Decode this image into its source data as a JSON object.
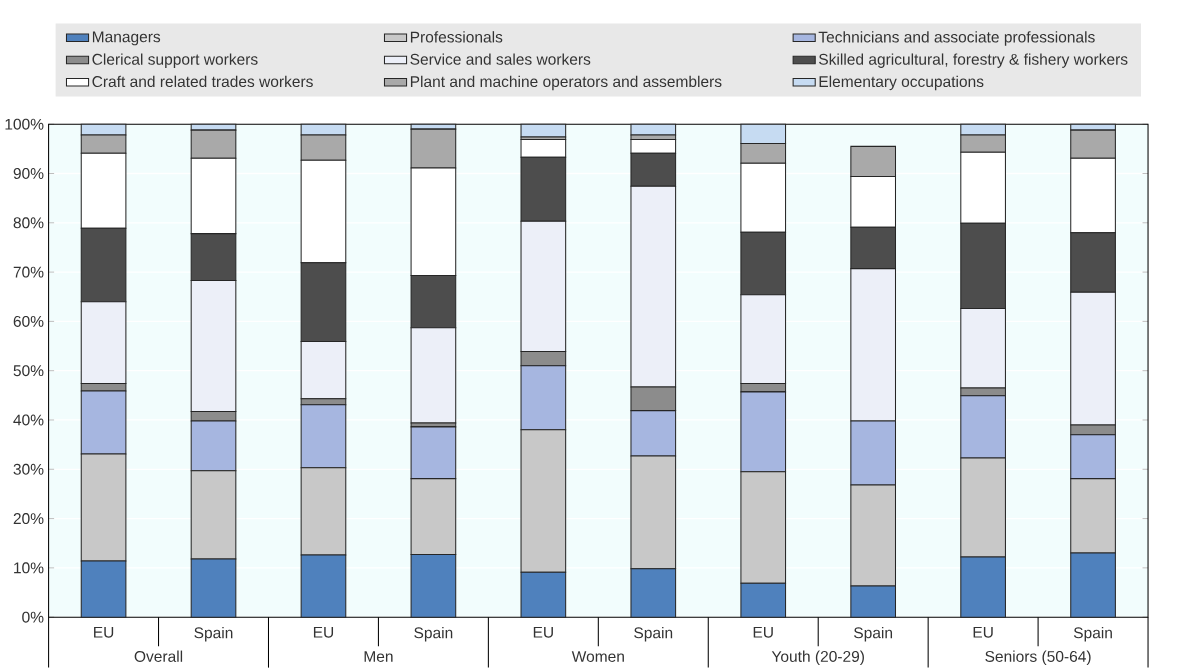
{
  "chart_data": {
    "type": "bar",
    "stacked": true,
    "categories": [
      "EU",
      "Spain",
      "EU",
      "Spain",
      "EU",
      "Spain",
      "EU",
      "Spain",
      "EU",
      "Spain"
    ],
    "annotations": [
      "Overall",
      "Men",
      "Women",
      "Youth (20-29)",
      "Seniors (50-64)"
    ],
    "series": [
      {
        "name": "Managers",
        "color": "#4f81bd",
        "values": [
          11.4,
          11.8,
          12.6,
          12.7,
          9.1,
          9.8,
          6.9,
          6.3,
          12.2,
          13.0
        ]
      },
      {
        "name": "Professionals",
        "color": "#c8c8c8",
        "values": [
          21.7,
          17.9,
          17.7,
          15.4,
          28.9,
          22.9,
          22.6,
          20.5,
          20.1,
          15.1
        ]
      },
      {
        "name": "Technicians and associate professionals",
        "color": "#a6b6e0",
        "values": [
          12.8,
          10.1,
          12.8,
          10.5,
          13.0,
          9.2,
          16.2,
          13.0,
          12.6,
          8.9
        ]
      },
      {
        "name": "Clerical support workers",
        "color": "#8c8c8c",
        "values": [
          1.5,
          1.9,
          1.2,
          0.8,
          2.9,
          4.8,
          1.7,
          null,
          1.6,
          2.0
        ]
      },
      {
        "name": "Service and sales workers",
        "color": "#eceff8",
        "values": [
          16.6,
          26.6,
          11.6,
          19.3,
          26.4,
          40.7,
          18.0,
          30.9,
          16.1,
          26.9
        ]
      },
      {
        "name": "Skilled agricultural, forestry & fishery workers",
        "color": "#4d4d4d",
        "values": [
          14.9,
          9.5,
          16.0,
          10.6,
          13.0,
          6.7,
          12.7,
          8.4,
          17.3,
          12.1
        ]
      },
      {
        "name": "Craft and related trades workers",
        "color": "#ffffff",
        "values": [
          15.2,
          15.3,
          20.8,
          21.8,
          3.6,
          2.8,
          14.0,
          10.3,
          14.4,
          15.1
        ]
      },
      {
        "name": "Plant and machine operators and assemblers",
        "color": "#a9a9a9",
        "values": [
          3.7,
          5.7,
          5.1,
          7.9,
          0.5,
          0.9,
          4.0,
          6.1,
          3.5,
          5.7
        ]
      },
      {
        "name": "Elementary occupations",
        "color": "#c6dbf2",
        "values": [
          2.2,
          1.2,
          2.2,
          1.0,
          2.6,
          2.2,
          3.9,
          null,
          2.2,
          1.2
        ]
      }
    ],
    "ylim": [
      0,
      100
    ],
    "yticks": [
      {
        "value": 0,
        "label": "0%"
      },
      {
        "value": 10,
        "label": "10%"
      },
      {
        "value": 20,
        "label": "20%"
      },
      {
        "value": 30,
        "label": "30%"
      },
      {
        "value": 40,
        "label": "40%"
      },
      {
        "value": 50,
        "label": "50%"
      },
      {
        "value": 60,
        "label": "60%"
      },
      {
        "value": 70,
        "label": "70%"
      },
      {
        "value": 80,
        "label": "80%"
      },
      {
        "value": 90,
        "label": "90%"
      },
      {
        "value": 100,
        "label": "100%"
      }
    ],
    "grid": "y",
    "legend": "top"
  }
}
